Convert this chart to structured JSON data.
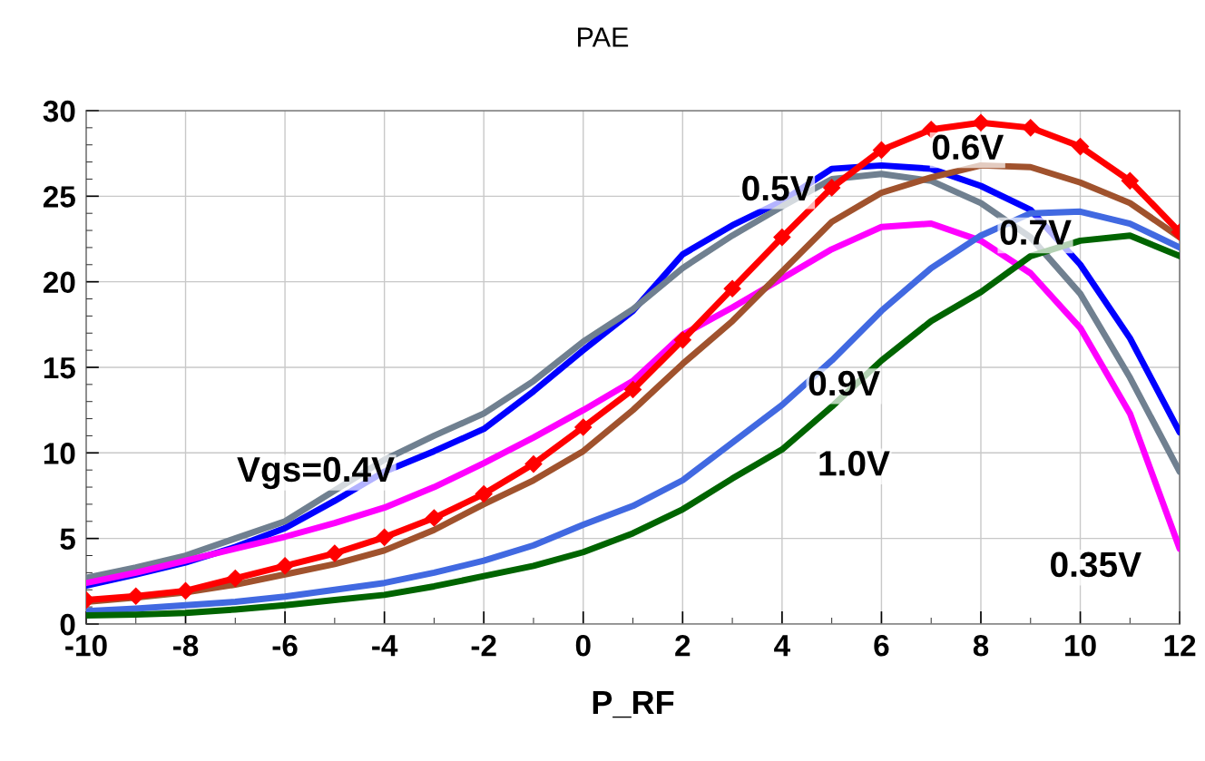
{
  "chart_data": {
    "type": "line",
    "title": "PAE",
    "xlabel": "P_RF",
    "x": [
      -10,
      -9,
      -8,
      -7,
      -6,
      -5,
      -4,
      -3,
      -2,
      -1,
      0,
      1,
      2,
      3,
      4,
      5,
      6,
      7,
      8,
      9,
      10,
      11,
      12
    ],
    "series": [
      {
        "color": "#0000ff",
        "marker": "none",
        "values": [
          2.25,
          2.9,
          3.6,
          4.5,
          5.6,
          7.2,
          8.9,
          10.1,
          11.4,
          13.6,
          16.0,
          18.3,
          21.6,
          23.3,
          24.7,
          26.6,
          26.8,
          26.6,
          25.6,
          24.2,
          21.0,
          16.7,
          11.2
        ]
      },
      {
        "color": "#708090",
        "marker": "none",
        "values": [
          2.7,
          3.3,
          4.0,
          5.0,
          6.0,
          7.8,
          9.6,
          11.0,
          12.3,
          14.2,
          16.5,
          18.4,
          20.8,
          22.7,
          24.4,
          26.0,
          26.3,
          25.9,
          24.6,
          22.6,
          19.3,
          14.4,
          8.9
        ]
      },
      {
        "color": "#ff00ff",
        "marker": "none",
        "values": [
          2.4,
          3.0,
          3.7,
          4.4,
          5.1,
          5.9,
          6.8,
          8.0,
          9.4,
          10.9,
          12.5,
          14.2,
          16.9,
          18.5,
          20.2,
          21.9,
          23.2,
          23.4,
          22.4,
          20.5,
          17.3,
          12.3,
          4.4
        ]
      },
      {
        "color": "#ff0000",
        "marker": "diamond",
        "values": [
          1.4,
          1.63,
          1.94,
          2.67,
          3.4,
          4.13,
          5.07,
          6.2,
          7.6,
          9.35,
          11.5,
          13.7,
          16.6,
          19.6,
          22.6,
          25.5,
          27.7,
          28.9,
          29.3,
          29.0,
          27.9,
          25.9,
          22.9
        ]
      },
      {
        "color": "#a0522d",
        "marker": "none",
        "values": [
          1.3,
          1.55,
          1.85,
          2.3,
          2.9,
          3.5,
          4.3,
          5.5,
          7.0,
          8.4,
          10.1,
          12.5,
          15.2,
          17.7,
          20.6,
          23.5,
          25.2,
          26.1,
          26.8,
          26.7,
          25.8,
          24.6,
          22.6
        ]
      },
      {
        "color": "#4169e1",
        "marker": "none",
        "values": [
          0.75,
          0.9,
          1.1,
          1.3,
          1.6,
          2.0,
          2.4,
          3.0,
          3.7,
          4.6,
          5.8,
          6.9,
          8.4,
          10.6,
          12.8,
          15.4,
          18.3,
          20.8,
          22.7,
          24.0,
          24.1,
          23.4,
          22.0
        ]
      },
      {
        "color": "#006400",
        "marker": "none",
        "values": [
          0.5,
          0.55,
          0.65,
          0.85,
          1.1,
          1.4,
          1.7,
          2.2,
          2.8,
          3.4,
          4.2,
          5.3,
          6.7,
          8.5,
          10.2,
          12.7,
          15.4,
          17.7,
          19.4,
          21.5,
          22.4,
          22.7,
          21.5
        ]
      }
    ],
    "xlim": [
      -10,
      12
    ],
    "ylim": [
      0,
      30
    ],
    "xticks": [
      -10,
      -8,
      -6,
      -4,
      -2,
      0,
      2,
      4,
      6,
      8,
      10,
      12
    ],
    "yticks": [
      0,
      5,
      10,
      15,
      20,
      25,
      30
    ],
    "grid": true,
    "legend": false,
    "annotations": [
      "Vgs=0.4V",
      "0.5V",
      "0.6V",
      "0.7V",
      "0.9V",
      "1.0V",
      "0.35V"
    ]
  }
}
